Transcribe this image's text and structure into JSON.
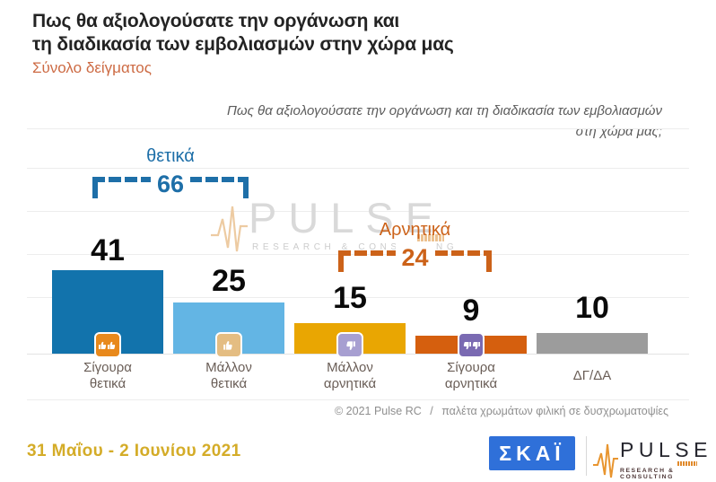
{
  "header": {
    "title_line1": "Πως θα αξιολογούσατε την οργάνωση και",
    "title_line2": "τη διαδικασία των εμβολιασμών στην χώρα μας",
    "subtitle": "Σύνολο δείγματος"
  },
  "question": {
    "line1": "Πως θα αξιολογούσατε την οργάνωση και τη διαδικασία των εμβολιασμών",
    "line2": "στη χώρα μας;"
  },
  "chart_data": {
    "type": "bar",
    "categories": [
      "Σίγουρα θετικά",
      "Μάλλον θετικά",
      "Μάλλον αρνητικά",
      "Σίγουρα αρνητικά",
      "ΔΓ/ΔΑ"
    ],
    "values": [
      41,
      25,
      15,
      9,
      10
    ],
    "bar_colors": [
      "#1273ac",
      "#63b5e4",
      "#e9a602",
      "#d55f0e",
      "#9c9c9c"
    ],
    "title": "Πως θα αξιολογούσατε την οργάνωση και τη διαδικασία των εμβολιασμών στη χώρα μας;",
    "xlabel": "",
    "ylabel": "",
    "ylim": [
      0,
      45
    ],
    "grid": "faint horizontal gridlines",
    "legend": "none",
    "groups": [
      {
        "label": "θετικά",
        "value": 66,
        "color": "#1e6fa8",
        "covers": [
          "Σίγουρα θετικά",
          "Μάλλον θετικά"
        ]
      },
      {
        "label": "Αρνητικά",
        "value": 24,
        "color": "#cc6219",
        "covers": [
          "Μάλλον αρνητικά",
          "Σίγουρα αρνητικά"
        ]
      }
    ]
  },
  "bars": [
    {
      "value": "41",
      "label1": "Σίγουρα",
      "label2": "θετικά",
      "icon": "double-thumbs-up",
      "icon_color": "#e8891c"
    },
    {
      "value": "25",
      "label1": "Μάλλον",
      "label2": "θετικά",
      "icon": "thumbs-up",
      "icon_color": "#e4bd82"
    },
    {
      "value": "15",
      "label1": "Μάλλον",
      "label2": "αρνητικά",
      "icon": "thumbs-down",
      "icon_color": "#a79fd1"
    },
    {
      "value": "9",
      "label1": "Σίγουρα",
      "label2": "αρνητικά",
      "icon": "double-thumbs-down",
      "icon_color": "#7a6ab2"
    },
    {
      "value": "10",
      "label1": "ΔΓ/ΔΑ",
      "label2": "",
      "icon": "none",
      "icon_color": ""
    }
  ],
  "brackets": {
    "positive": {
      "label": "θετικά",
      "value": "66"
    },
    "negative": {
      "label": "Αρνητικά",
      "value": "24"
    }
  },
  "watermark": {
    "name": "PULSE",
    "sub": "RESEARCH & CONSULTING"
  },
  "footer": {
    "credit": "© 2021 Pulse RC",
    "separator": "/",
    "note": "παλέτα χρωμάτων φιλική σε δυσχρωματοψίες",
    "date": "31 Μαΐου - 2 Ιουνίου 2021"
  },
  "logos": {
    "skai": "ΣΚΑΪ",
    "pulse": "PULSE",
    "pulse_sub": "RESEARCH & CONSULTING"
  },
  "colors": {
    "title_text": "#232323",
    "subtitle_orange": "#cd6b44",
    "positive_blue": "#1e6fa8",
    "negative_orange": "#cc6219",
    "date_gold": "#d4ac28",
    "skai_blue": "#2f70d9",
    "category_text": "#6a5e57",
    "footer_gray": "#8f8f8f"
  }
}
